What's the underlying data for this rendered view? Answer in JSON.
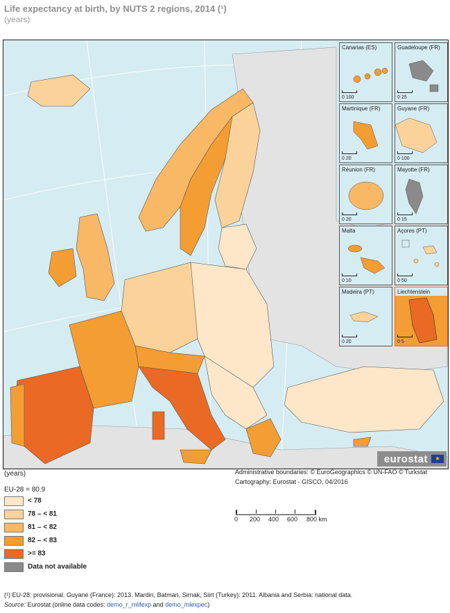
{
  "title": "Life expectancy at birth, by NUTS 2 regions, 2014 (¹)",
  "subtitle": "(years)",
  "colors": {
    "sea": "#d6ecf3",
    "non_eu": "#e3e3e3",
    "lt78": "#fde7c8",
    "c78_81": "#fbd39a",
    "c81_82": "#f8b866",
    "c82_83": "#f49d33",
    "ge83": "#ea6a25",
    "na": "#8a8a8a"
  },
  "insets": [
    {
      "label": "Canarias (ES)",
      "scale": "0  100"
    },
    {
      "label": "Guadeloupe (FR)",
      "scale": "0  25"
    },
    {
      "label": "Martinique (FR)",
      "scale": "0  20"
    },
    {
      "label": "Guyane (FR)",
      "scale": "0  100"
    },
    {
      "label": "Réunion (FR)",
      "scale": "0  20"
    },
    {
      "label": "Mayotte (FR)",
      "scale": "0  15"
    },
    {
      "label": "Malta",
      "scale": "0  10"
    },
    {
      "label": "Açores (PT)",
      "scale": "0  50"
    },
    {
      "label": "Madeira (PT)",
      "scale": "0  20"
    },
    {
      "label": "Liechtenstein",
      "scale": "0  5"
    }
  ],
  "logo": {
    "text": "eurostat"
  },
  "unit_label": "(years)",
  "admin_boundaries": "Administrative boundaries: © EuroGeographics © UN-FAO © Turkstat",
  "cartography": "Cartography: Eurostat - GISCO, 04/2016",
  "eu_average": "EU-28 = 80.9",
  "legend": [
    {
      "label": "< 78",
      "color": "#fde7c8"
    },
    {
      "label": "78 – < 81",
      "color": "#fbd39a"
    },
    {
      "label": "81 – < 82",
      "color": "#f8b866"
    },
    {
      "label": "82 – < 83",
      "color": "#f49d33"
    },
    {
      "label": ">= 83",
      "color": "#ea6a25"
    },
    {
      "label": "Data not available",
      "color": "#8a8a8a"
    }
  ],
  "scalebar": {
    "labels": [
      "0",
      "200",
      "400",
      "600",
      "800 km"
    ]
  },
  "footnote": "(¹) EU-28: provisional. Guyane (France): 2013. Mardin, Batman, Sirnak, Siirt (Turkey): 2011. Albania and Serbia: national data.",
  "source": {
    "label": "Source:",
    "text_1": "Eurostat (online data codes: ",
    "link_1": "demo_r_mlifexp",
    "text_2": " and ",
    "link_2": "demo_mlexpec",
    "text_3": ")"
  }
}
